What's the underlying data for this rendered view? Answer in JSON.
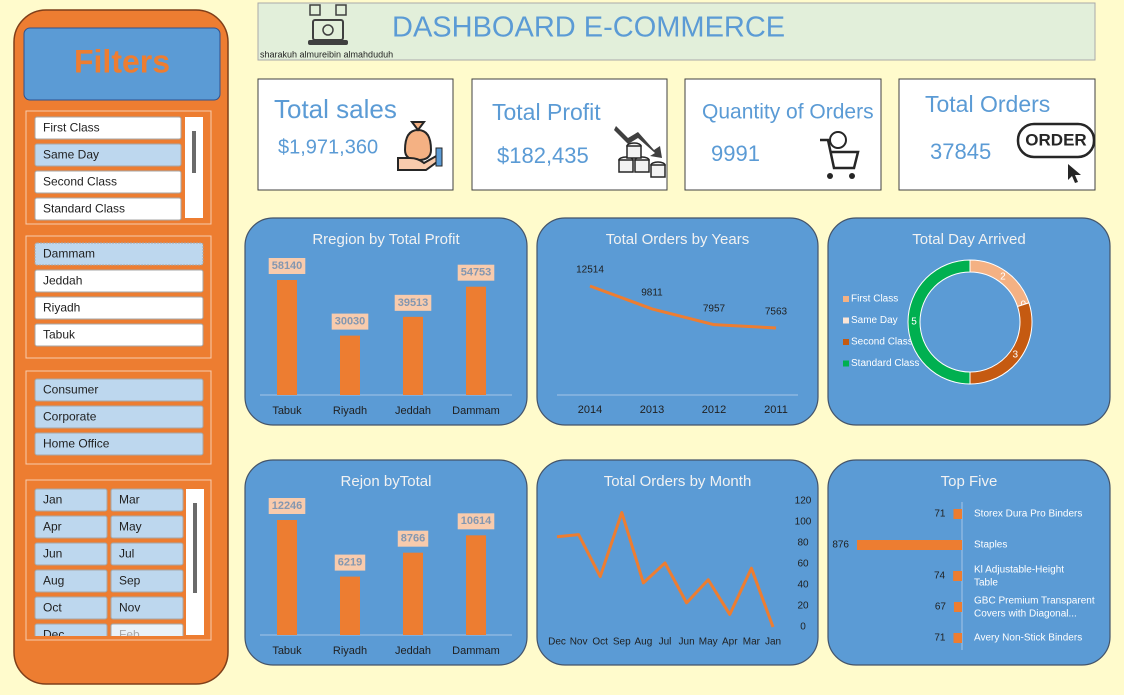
{
  "header": {
    "title": "DASHBOARD E-COMMERCE",
    "subtitle": "sharakuh almureibin almahduduh"
  },
  "filters": {
    "title": "Filters",
    "ship_mode": [
      "First Class",
      "Same Day",
      "Second Class",
      "Standard Class"
    ],
    "region": [
      "Dammam",
      "Jeddah",
      "Riyadh",
      "Tabuk"
    ],
    "segment": [
      "Consumer",
      "Corporate",
      "Home Office"
    ],
    "month": [
      "Jan",
      "Mar",
      "Apr",
      "May",
      "Jun",
      "Jul",
      "Aug",
      "Sep",
      "Oct",
      "Nov",
      "Dec",
      "Feb"
    ]
  },
  "kpis": [
    {
      "label": "Total sales",
      "value": "$1,971,360"
    },
    {
      "label": "Total Profit",
      "value": "$182,435"
    },
    {
      "label": "Quantity of Orders",
      "value": "9991"
    },
    {
      "label": "Total Orders",
      "value": "37845",
      "icon_text": "ORDER"
    }
  ],
  "chart_data": [
    {
      "type": "bar",
      "title": "Rregion by Total Profit",
      "categories": [
        "Tabuk",
        "Riyadh",
        "Jeddah",
        "Dammam"
      ],
      "values": [
        58140,
        30030,
        39513,
        54753
      ],
      "color": "#ed7d31",
      "data_labels": true
    },
    {
      "type": "line",
      "title": "Total Orders by Years",
      "categories": [
        "2014",
        "2013",
        "2012",
        "2011"
      ],
      "values": [
        12514,
        9811,
        7957,
        7563
      ],
      "color": "#ed7d31",
      "data_labels": true
    },
    {
      "type": "donut",
      "title": "Total Day Arrived",
      "categories": [
        "First Class",
        "Same Day",
        "Second Class",
        "Standard Class"
      ],
      "values": [
        2,
        0,
        3,
        5
      ],
      "colors": [
        "#f4b183",
        "#fbe5d6",
        "#c55a11",
        "#00b050"
      ],
      "legend": "left",
      "data_labels": true
    },
    {
      "type": "bar",
      "title": "Rejon byTotal",
      "categories": [
        "Tabuk",
        "Riyadh",
        "Jeddah",
        "Dammam"
      ],
      "values": [
        12246,
        6219,
        8766,
        10614
      ],
      "color": "#ed7d31",
      "data_labels": true
    },
    {
      "type": "line",
      "title": "Total Orders by Month",
      "categories": [
        "Dec",
        "Nov",
        "Oct",
        "Sep",
        "Aug",
        "Jul",
        "Jun",
        "May",
        "Apr",
        "Mar",
        "Jan"
      ],
      "values": [
        86,
        88,
        48,
        109,
        42,
        61,
        23,
        45,
        12,
        56,
        0
      ],
      "color": "#ed7d31",
      "ylim": [
        0,
        120
      ],
      "yticks": [
        0,
        20,
        40,
        60,
        80,
        100,
        120
      ],
      "y_axis_side": "right"
    },
    {
      "type": "hbar",
      "title": "Top Five",
      "categories": [
        "Storex Dura Pro Binders",
        "Staples",
        "Kl Adjustable-Height Table",
        "GBC Premium Transparent Covers with Diagonal...",
        "Avery Non-Stick Binders"
      ],
      "values": [
        71,
        876,
        74,
        67,
        71
      ],
      "color": "#ed7d31",
      "x_reversed": true,
      "data_labels": true
    }
  ]
}
